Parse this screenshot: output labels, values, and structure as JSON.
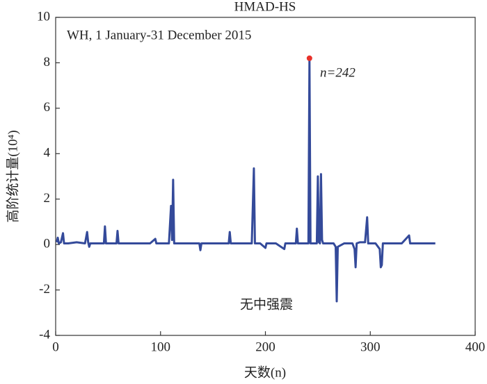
{
  "chart_data": {
    "type": "line",
    "title": "HMAD-HS",
    "xlabel": "天数(n)",
    "ylabel": "高阶统计量(10⁴)",
    "annotations": [
      "WH, 1  January-31  December  2015",
      "n=242",
      "无中强震"
    ],
    "x": [
      1,
      2,
      3,
      5,
      7,
      8,
      12,
      20,
      28,
      30,
      31,
      32,
      33,
      40,
      46,
      47,
      48,
      55,
      58,
      59,
      60,
      70,
      80,
      90,
      95,
      96,
      100,
      108,
      110,
      111,
      112,
      113,
      116,
      130,
      137,
      138,
      139,
      150,
      160,
      165,
      166,
      167,
      180,
      187,
      189,
      190,
      195,
      200,
      201,
      210,
      218,
      219,
      225,
      229,
      230,
      231,
      238,
      241,
      242,
      243,
      246,
      249,
      250,
      251,
      252,
      253,
      254,
      255,
      260,
      265,
      267,
      268,
      269,
      275,
      283,
      285,
      286,
      287,
      290,
      295,
      297,
      298,
      305,
      309,
      310,
      311,
      312,
      320,
      330,
      337,
      338,
      345,
      355,
      362
    ],
    "series": [
      {
        "color": "#344a9a",
        "values": [
          0.1,
          0.3,
          0.05,
          0.1,
          0.5,
          0.05,
          0.05,
          0.1,
          0.05,
          0.55,
          0.1,
          -0.1,
          0.05,
          0.05,
          0.05,
          0.8,
          0.05,
          0.05,
          0.05,
          0.6,
          0.05,
          0.05,
          0.05,
          0.05,
          0.25,
          0.05,
          0.05,
          0.05,
          1.7,
          0.2,
          2.85,
          0.05,
          0.05,
          0.05,
          0.05,
          -0.25,
          0.05,
          0.05,
          0.05,
          0.05,
          0.55,
          0.05,
          0.05,
          0.05,
          3.35,
          0.05,
          0.05,
          -0.15,
          0.05,
          0.05,
          -0.2,
          0.05,
          0.05,
          0.05,
          0.7,
          0.05,
          0.05,
          0.05,
          8.2,
          0.05,
          0.05,
          0.05,
          3.0,
          0.1,
          0.05,
          3.1,
          0.2,
          0.05,
          0.05,
          0.05,
          -0.1,
          -2.5,
          -0.1,
          0.05,
          0.05,
          -0.2,
          -1.0,
          0.05,
          0.1,
          0.1,
          1.2,
          0.05,
          0.05,
          -0.2,
          -1.0,
          -0.9,
          0.05,
          0.05,
          0.05,
          0.4,
          0.05,
          0.05,
          0.05,
          0.05
        ]
      }
    ],
    "highlight": {
      "x": 242,
      "y": 8.2,
      "color": "#e8312a"
    },
    "xlim": [
      0,
      400
    ],
    "xticks": [
      0,
      100,
      200,
      300,
      400
    ],
    "ylim": [
      -4,
      10
    ],
    "yticks": [
      -4,
      -2,
      0,
      2,
      4,
      6,
      8,
      10
    ]
  }
}
